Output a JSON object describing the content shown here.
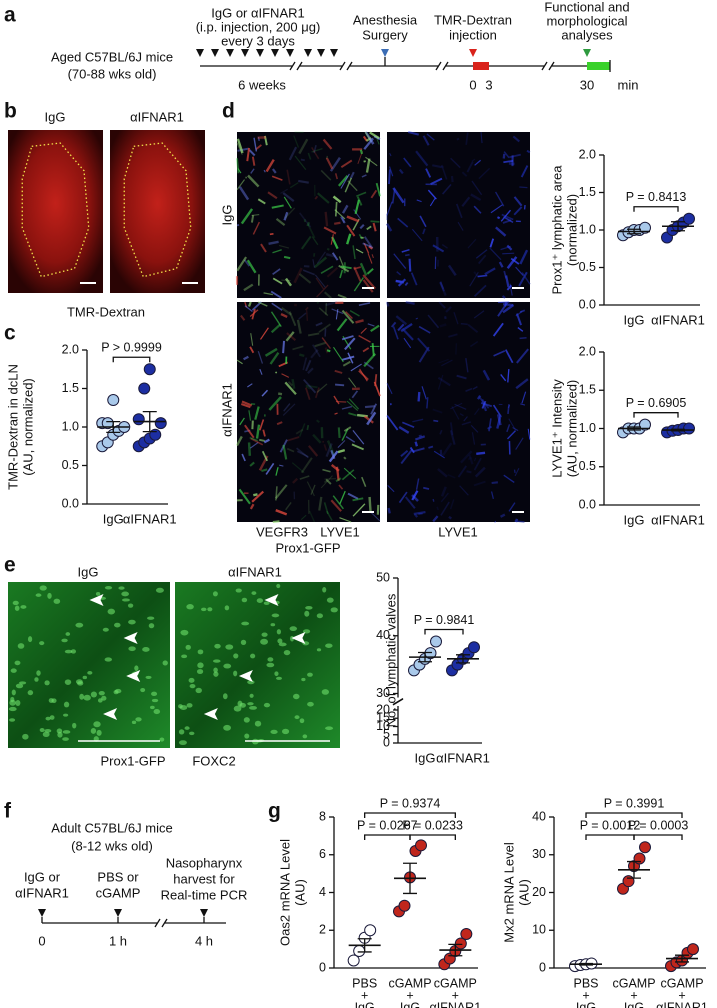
{
  "panel_labels": [
    "a",
    "b",
    "c",
    "d",
    "e",
    "f",
    "g"
  ],
  "timeline_a": {
    "mouse": [
      "Aged C57BL/6J mice",
      "(70-88 wks old)"
    ],
    "treatment": [
      "IgG or αIFNAR1",
      "(i.p. injection, 200 μg)",
      "every 3 days"
    ],
    "duration": "6 weeks",
    "surgery": [
      "Anesthesia",
      "Surgery"
    ],
    "injection": [
      "TMR-Dextran",
      "injection"
    ],
    "analysis": [
      "Functional and",
      "morphological",
      "analyses"
    ],
    "times": [
      "0",
      "3",
      "30"
    ],
    "unit": "min"
  },
  "images": {
    "b": {
      "groups": [
        "IgG",
        "αIFNAR1"
      ],
      "stain": "TMR-Dextran"
    },
    "d": {
      "groups": [
        "IgG",
        "αIFNAR1"
      ],
      "stain_merge": [
        "VEGFR3",
        "LYVE1",
        "Prox1-GFP"
      ],
      "stain_single": "LYVE1"
    },
    "e": {
      "groups": [
        "IgG",
        "αIFNAR1"
      ],
      "stain": [
        "Prox1-GFP",
        "FOXC2"
      ]
    }
  },
  "timeline_f": {
    "mouse": [
      "Adult C57BL/6J mice",
      "(8-12 wks old)"
    ],
    "steps": [
      [
        "IgG or",
        "αIFNAR1"
      ],
      [
        "PBS or",
        "cGAMP"
      ],
      [
        "Nasopharynx",
        "harvest for",
        "Real-time PCR"
      ]
    ],
    "times": [
      "0",
      "1 h",
      "4 h"
    ]
  },
  "chart_data": [
    {
      "type": "dot",
      "y_label": [
        "TMR-Dextran in dcLN",
        "(AU, normalized)"
      ],
      "categories": [
        "IgG",
        "αIFNAR1"
      ],
      "values": [
        [
          0.75,
          0.8,
          0.9,
          0.95,
          1.0,
          1.05,
          1.05,
          1.35
        ],
        [
          0.75,
          0.8,
          0.85,
          0.9,
          1.05,
          1.1,
          1.5,
          1.75
        ]
      ],
      "means": [
        1.0,
        1.07
      ],
      "sems": [
        0.07,
        0.13
      ],
      "colors": [
        "#a9c9ea",
        "#1c2ea2"
      ],
      "ylim": [
        0,
        2
      ],
      "yticks": [
        {
          "value": 0,
          "label": "0.0"
        },
        0.5,
        {
          "value": 1,
          "label": "1.0"
        },
        1.5,
        {
          "value": 2,
          "label": "2.0"
        }
      ],
      "comparisons": [
        {
          "between": [
            "IgG",
            "αIFNAR1"
          ],
          "label": "P > 0.9999"
        }
      ]
    },
    {
      "type": "dot",
      "y_label": [
        "Prox1⁺ lymphatic area",
        "(normalized)"
      ],
      "categories": [
        "IgG",
        "αIFNAR1"
      ],
      "values": [
        [
          0.93,
          0.97,
          1.0,
          1.0,
          1.03
        ],
        [
          0.9,
          1.0,
          1.05,
          1.1,
          1.15
        ]
      ],
      "means": [
        0.98,
        1.05
      ],
      "sems": [
        0.03,
        0.06
      ],
      "colors": [
        "#a9c9ea",
        "#1c2ea2"
      ],
      "ylim": [
        0,
        2
      ],
      "yticks": [
        {
          "value": 0,
          "label": "0.0"
        },
        0.5,
        {
          "value": 1,
          "label": "1.0"
        },
        1.5,
        {
          "value": 2,
          "label": "2.0"
        }
      ],
      "comparisons": [
        {
          "between": [
            "IgG",
            "αIFNAR1"
          ],
          "label": "P = 0.8413"
        }
      ]
    },
    {
      "type": "dot",
      "y_label": [
        "LYVE1⁺ Intensity",
        "(AU, normalized)"
      ],
      "categories": [
        "IgG",
        "αIFNAR1"
      ],
      "values": [
        [
          0.95,
          1.0,
          1.0,
          1.0,
          1.05
        ],
        [
          0.95,
          0.97,
          0.98,
          1.0,
          1.0
        ]
      ],
      "means": [
        1.0,
        0.98
      ],
      "sems": [
        0.02,
        0.01
      ],
      "colors": [
        "#a9c9ea",
        "#1c2ea2"
      ],
      "ylim": [
        0,
        2
      ],
      "yticks": [
        {
          "value": 0,
          "label": "0.0"
        },
        0.5,
        {
          "value": 1,
          "label": "1.0"
        },
        1.5,
        {
          "value": 2,
          "label": "2.0"
        }
      ],
      "comparisons": [
        {
          "between": [
            "IgG",
            "αIFNAR1"
          ],
          "label": "P = 0.6905"
        }
      ]
    },
    {
      "type": "dot",
      "y_label": [
        "No. of lymphatic valves"
      ],
      "categories": [
        "IgG",
        "αIFNAR1"
      ],
      "values": [
        [
          34,
          35,
          36,
          37,
          39
        ],
        [
          34,
          35,
          36,
          37,
          38
        ]
      ],
      "means": [
        36.3,
        36
      ],
      "sems": [
        0.8,
        0.7
      ],
      "colors": [
        "#a9c9ea",
        "#1c2ea2"
      ],
      "ylim": [
        0,
        50
      ],
      "axis_break": [
        20,
        30
      ],
      "yticks": [
        0,
        5,
        10,
        15,
        20,
        30,
        40,
        50
      ],
      "comparisons": [
        {
          "between": [
            "IgG",
            "αIFNAR1"
          ],
          "label": "P = 0.9841"
        }
      ]
    },
    {
      "type": "dot",
      "y_label": [
        "Oas2 mRNA Level",
        "(AU)"
      ],
      "categories": [
        [
          "PBS",
          "+",
          "IgG"
        ],
        [
          "cGAMP",
          "+",
          "IgG"
        ],
        [
          "cGAMP",
          "+",
          "αIFNAR1"
        ]
      ],
      "values": [
        [
          0.4,
          0.9,
          1.6,
          2.0
        ],
        [
          3.0,
          3.3,
          4.8,
          6.2,
          6.5
        ],
        [
          0.2,
          0.5,
          0.9,
          1.3,
          1.8
        ]
      ],
      "means": [
        1.2,
        4.75,
        0.95
      ],
      "sems": [
        0.35,
        0.8,
        0.3
      ],
      "colors": [
        "#ffffff",
        "#c0261c",
        "#c0261c"
      ],
      "ylim": [
        0,
        8
      ],
      "yticks": [
        0,
        2,
        4,
        6,
        8
      ],
      "comparisons": [
        {
          "between": [
            [
              "PBS",
              "+",
              "IgG"
            ],
            [
              "cGAMP",
              "+",
              "αIFNAR1"
            ]
          ],
          "label": "P = 0.9374"
        },
        {
          "between": [
            [
              "PBS",
              "+",
              "IgG"
            ],
            [
              "cGAMP",
              "+",
              "IgG"
            ]
          ],
          "label": "P = 0.0267"
        },
        {
          "between": [
            [
              "cGAMP",
              "+",
              "IgG"
            ],
            [
              "cGAMP",
              "+",
              "αIFNAR1"
            ]
          ],
          "label": "P = 0.0233"
        }
      ]
    },
    {
      "type": "dot",
      "y_label": [
        "Mx2 mRNA Level",
        "(AU)"
      ],
      "categories": [
        [
          "PBS",
          "+",
          "IgG"
        ],
        [
          "cGAMP",
          "+",
          "IgG"
        ],
        [
          "cGAMP",
          "+",
          "αIFNAR1"
        ]
      ],
      "values": [
        [
          0.5,
          0.8,
          1.0,
          1.2
        ],
        [
          21,
          23,
          27,
          29,
          32
        ],
        [
          0.5,
          1.5,
          2,
          4,
          5
        ]
      ],
      "means": [
        1.0,
        26,
        2.5
      ],
      "sems": [
        0.2,
        2.2,
        0.9
      ],
      "colors": [
        "#ffffff",
        "#c0261c",
        "#c0261c"
      ],
      "ylim": [
        0,
        40
      ],
      "yticks": [
        0,
        10,
        20,
        30,
        40
      ],
      "comparisons": [
        {
          "between": [
            [
              "PBS",
              "+",
              "IgG"
            ],
            [
              "cGAMP",
              "+",
              "αIFNAR1"
            ]
          ],
          "label": "P = 0.3991"
        },
        {
          "between": [
            [
              "PBS",
              "+",
              "IgG"
            ],
            [
              "cGAMP",
              "+",
              "IgG"
            ]
          ],
          "label": "P = 0.0012"
        },
        {
          "between": [
            [
              "cGAMP",
              "+",
              "IgG"
            ],
            [
              "cGAMP",
              "+",
              "αIFNAR1"
            ]
          ],
          "label": "P = 0.0003"
        }
      ]
    }
  ]
}
